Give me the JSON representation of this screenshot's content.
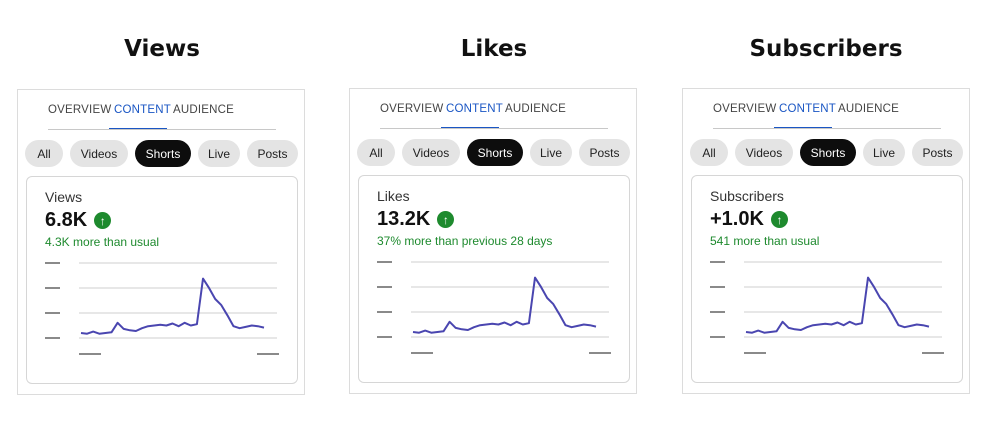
{
  "tabs": [
    "OVERVIEW",
    "CONTENT",
    "AUDIENCE"
  ],
  "chips": [
    "All",
    "Videos",
    "Shorts",
    "Live",
    "Posts"
  ],
  "panels": [
    {
      "heading": "Views",
      "metric_label": "Views",
      "metric_value": "6.8K",
      "metric_delta": "4.3K more than usual"
    },
    {
      "heading": "Likes",
      "metric_label": "Likes",
      "metric_value": "13.2K",
      "metric_delta": "37% more than previous 28 days"
    },
    {
      "heading": "Subscribers",
      "metric_label": "Subscribers",
      "metric_value": "+1.0K",
      "metric_delta": "541 more than usual"
    }
  ],
  "icons": {
    "trend": "arrow-up-icon"
  },
  "colors": {
    "accent": "#1a56c4",
    "positive": "#1e8a2e",
    "line": "#4a46b0",
    "selected_chip": "#0d0d0d"
  },
  "chart_data": [
    {
      "type": "line",
      "values": [
        0.2,
        0.19,
        0.22,
        0.19,
        0.2,
        0.21,
        0.35,
        0.26,
        0.24,
        0.23,
        0.27,
        0.3,
        0.31,
        0.32,
        0.31,
        0.34,
        0.3,
        0.35,
        0.31,
        0.33,
        1.0,
        0.86,
        0.7,
        0.61,
        0.46,
        0.3,
        0.27,
        0.29,
        0.31,
        0.3,
        0.28
      ]
    },
    {
      "type": "line",
      "values": [
        0.2,
        0.19,
        0.22,
        0.19,
        0.2,
        0.21,
        0.35,
        0.26,
        0.24,
        0.23,
        0.27,
        0.3,
        0.31,
        0.32,
        0.31,
        0.34,
        0.3,
        0.35,
        0.31,
        0.33,
        1.0,
        0.86,
        0.7,
        0.61,
        0.46,
        0.3,
        0.27,
        0.29,
        0.31,
        0.3,
        0.28
      ]
    },
    {
      "type": "line",
      "values": [
        0.2,
        0.19,
        0.22,
        0.19,
        0.2,
        0.21,
        0.35,
        0.26,
        0.24,
        0.23,
        0.27,
        0.3,
        0.31,
        0.32,
        0.31,
        0.34,
        0.3,
        0.35,
        0.31,
        0.33,
        1.0,
        0.86,
        0.7,
        0.61,
        0.46,
        0.3,
        0.27,
        0.29,
        0.31,
        0.3,
        0.28
      ]
    }
  ]
}
